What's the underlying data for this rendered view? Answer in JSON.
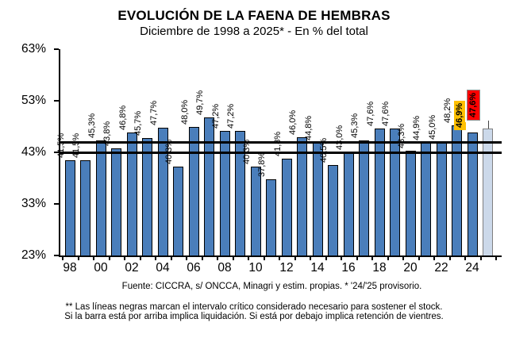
{
  "header": {
    "title": "EVOLUCIÓN DE LA FAENA DE HEMBRAS",
    "subtitle": "Diciembre de 1998 a 2025* - En % del total"
  },
  "footer": {
    "source": "Fuente: CICCRA, s/ ONCCA, Minagri y estim. propias. * '24/'25  provisorio.",
    "footnote_line1": "** Las líneas negras marcan el intervalo crítico considerado necesario para sostener el stock.",
    "footnote_line2": "Si la barra está por arriba implica liquidación. Si está por debajo implica retención de vientres."
  },
  "chart_data": {
    "type": "bar",
    "title": "EVOLUCIÓN DE LA FAENA DE HEMBRAS",
    "subtitle": "Diciembre de 1998 a 2025* - En % del total",
    "ylabel": "",
    "xlabel": "",
    "years": [
      1998,
      1999,
      2000,
      2001,
      2002,
      2003,
      2004,
      2005,
      2006,
      2007,
      2008,
      2009,
      2010,
      2011,
      2012,
      2013,
      2014,
      2015,
      2016,
      2017,
      2018,
      2019,
      2020,
      2021,
      2022,
      2023,
      2024,
      2025
    ],
    "values": [
      41.5,
      41.5,
      45.3,
      43.8,
      46.8,
      45.7,
      47.7,
      40.3,
      48.0,
      49.7,
      47.2,
      47.2,
      40.3,
      37.8,
      41.8,
      46.0,
      44.8,
      40.5,
      43.0,
      45.3,
      47.6,
      47.6,
      43.3,
      44.9,
      45.0,
      48.2,
      46.9,
      47.6
    ],
    "data_labels": [
      "41,5%",
      "41,5%",
      "45,3%",
      "43,8%",
      "46,8%",
      "45,7%",
      "47,7%",
      "40,3%",
      "48,0%",
      "49,7%",
      "47,2%",
      "47,2%",
      "40,3%",
      "37,8%",
      "41,8%",
      "46,0%",
      "44,8%",
      "40,5%",
      "43,0%",
      "45,3%",
      "47,6%",
      "47,6%",
      "43,3%",
      "44,9%",
      "45,0%",
      "48,2%",
      "46,9%",
      "47,6%"
    ],
    "x_tick_labels": [
      "98",
      "00",
      "02",
      "04",
      "06",
      "08",
      "10",
      "12",
      "14",
      "16",
      "18",
      "20",
      "22",
      "24"
    ],
    "y_tick_labels": [
      "63%",
      "53%",
      "43%",
      "33%",
      "23%"
    ],
    "y_tick_values": [
      63,
      53,
      43,
      33,
      23
    ],
    "ylim": [
      23,
      63
    ],
    "reference_lines": [
      43,
      45
    ],
    "grid": false,
    "legend": "none",
    "colors": {
      "bar": "#4a7ebb",
      "bar_border": "#000000",
      "last_bar": "#ccd9ea",
      "last_bar_border": "#7f7f7f",
      "label_2024_bg": "#ffc000",
      "label_2025_bg": "#ff0000",
      "reference_line": "#000000"
    },
    "highlights": {
      "index_2024": 26,
      "index_2025": 27,
      "label_2024": "46,9%",
      "label_2025": "47,6%"
    }
  }
}
